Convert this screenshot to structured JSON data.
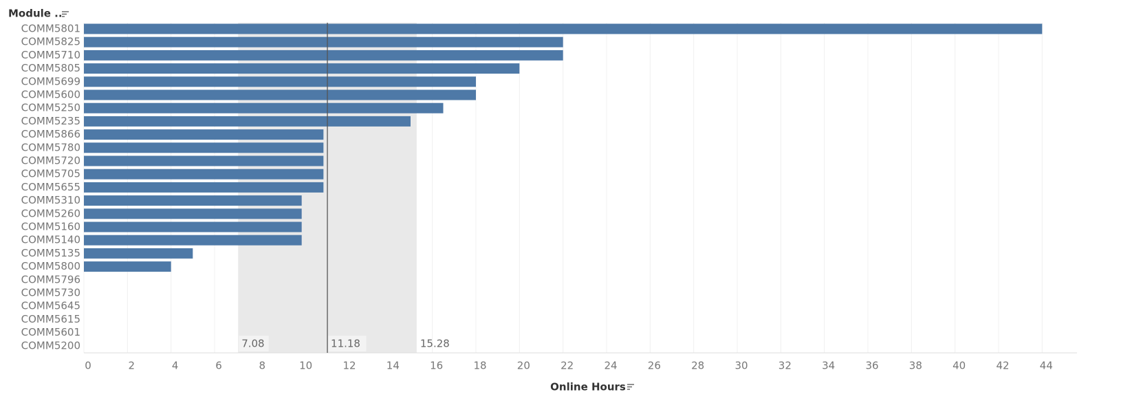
{
  "chart_data": {
    "type": "bar",
    "orientation": "horizontal",
    "y_header": "Module ..",
    "x_label": "Online Hours",
    "categories": [
      "COMM5801",
      "COMM5825",
      "COMM5710",
      "COMM5805",
      "COMM5699",
      "COMM5600",
      "COMM5250",
      "COMM5235",
      "COMM5866",
      "COMM5780",
      "COMM5720",
      "COMM5705",
      "COMM5655",
      "COMM5310",
      "COMM5260",
      "COMM5160",
      "COMM5140",
      "COMM5135",
      "COMM5800",
      "COMM5796",
      "COMM5730",
      "COMM5645",
      "COMM5615",
      "COMM5601",
      "COMM5200"
    ],
    "values": [
      44,
      22,
      22,
      20,
      18,
      18,
      16.5,
      15,
      11,
      11,
      11,
      11,
      11,
      10,
      10,
      10,
      10,
      5,
      4,
      null,
      null,
      null,
      null,
      null,
      null
    ],
    "color": "#4e79a7",
    "xlim": [
      0,
      45.6
    ],
    "xticks": [
      0,
      2,
      4,
      6,
      8,
      10,
      12,
      14,
      16,
      18,
      20,
      22,
      24,
      26,
      28,
      30,
      32,
      34,
      36,
      38,
      40,
      42,
      44
    ],
    "grid": true,
    "reference_band": [
      7.08,
      15.28
    ],
    "reference_line": 11.18
  }
}
